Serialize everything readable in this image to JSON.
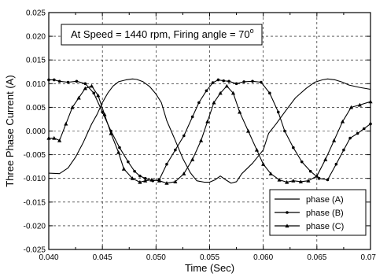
{
  "chart_data": {
    "type": "line",
    "title": "",
    "xlabel": "Time (Sec)",
    "ylabel": "Three Phase Current (A)",
    "xlim": [
      0.04,
      0.07
    ],
    "ylim": [
      -0.025,
      0.025
    ],
    "x_ticks": [
      "0.040",
      "0.045",
      "0.050",
      "0.055",
      "0.060",
      "0.065",
      "0.070"
    ],
    "y_ticks": [
      "0.025",
      "0.020",
      "0.015",
      "0.010",
      "0.005",
      "0.000",
      "-0.005",
      "-0.010",
      "-0.015",
      "-0.020",
      "-0.025"
    ],
    "grid": true,
    "legend_position": "bottom-right",
    "annotation": {
      "text": "At Speed = 1440 rpm, Firing angle = 70",
      "superscript": "o"
    },
    "series": [
      {
        "name": "phase (A)",
        "marker": "none",
        "x": [
          0.04,
          0.041,
          0.0418,
          0.0425,
          0.0432,
          0.0436,
          0.044,
          0.0445,
          0.045,
          0.0455,
          0.046,
          0.0465,
          0.0472,
          0.0478,
          0.0482,
          0.0488,
          0.0494,
          0.05,
          0.0505,
          0.051,
          0.0518,
          0.0525,
          0.0532,
          0.0538,
          0.0545,
          0.055,
          0.0555,
          0.056,
          0.0565,
          0.057,
          0.0575,
          0.058,
          0.059,
          0.06,
          0.0605,
          0.0612,
          0.062,
          0.063,
          0.064,
          0.0648,
          0.0655,
          0.066,
          0.0667,
          0.0674,
          0.068,
          0.069,
          0.07
        ],
        "y": [
          -0.0089,
          -0.009,
          -0.0078,
          -0.0055,
          -0.0025,
          -0.0005,
          0.0015,
          0.0035,
          0.006,
          0.008,
          0.0095,
          0.0104,
          0.0108,
          0.011,
          0.0109,
          0.0104,
          0.0094,
          0.0078,
          0.006,
          0.0022,
          -0.002,
          -0.0058,
          -0.0088,
          -0.0105,
          -0.0108,
          -0.0108,
          -0.0103,
          -0.0095,
          -0.0103,
          -0.011,
          -0.0107,
          -0.009,
          -0.0068,
          -0.004,
          -0.0005,
          0.0015,
          0.004,
          0.007,
          0.009,
          0.0103,
          0.0108,
          0.011,
          0.0108,
          0.0103,
          0.0097,
          0.0092,
          0.0088
        ]
      },
      {
        "name": "phase (B)",
        "marker": "dot",
        "x": [
          0.04,
          0.0405,
          0.041,
          0.0418,
          0.0426,
          0.0434,
          0.0442,
          0.045,
          0.0458,
          0.0466,
          0.0474,
          0.048,
          0.0485,
          0.049,
          0.0497,
          0.0503,
          0.051,
          0.0518,
          0.0526,
          0.0534,
          0.054,
          0.0547,
          0.0553,
          0.0558,
          0.0563,
          0.0568,
          0.0575,
          0.0582,
          0.059,
          0.0598,
          0.0606,
          0.0614,
          0.062,
          0.0628,
          0.0636,
          0.0644,
          0.0652,
          0.066,
          0.0668,
          0.0675,
          0.0681,
          0.0688,
          0.0694,
          0.07
        ],
        "y": [
          0.0108,
          0.0108,
          0.0105,
          0.0103,
          0.0105,
          0.01,
          0.008,
          0.004,
          0.0,
          -0.0035,
          -0.0065,
          -0.0085,
          -0.0095,
          -0.01,
          -0.0105,
          -0.0103,
          -0.007,
          -0.004,
          -0.001,
          0.003,
          0.006,
          0.0085,
          0.0102,
          0.0108,
          0.0106,
          0.0105,
          0.01,
          0.0104,
          0.0105,
          0.0103,
          0.008,
          0.004,
          0.0,
          -0.0035,
          -0.0065,
          -0.0085,
          -0.01,
          -0.0103,
          -0.007,
          -0.004,
          -0.0015,
          -0.0005,
          0.0005,
          0.0015
        ]
      },
      {
        "name": "phase (C)",
        "marker": "triangle",
        "x": [
          0.04,
          0.0405,
          0.041,
          0.0416,
          0.0422,
          0.0428,
          0.0434,
          0.044,
          0.0446,
          0.0452,
          0.0458,
          0.0465,
          0.047,
          0.0478,
          0.0485,
          0.049,
          0.0496,
          0.0503,
          0.051,
          0.0518,
          0.0526,
          0.0534,
          0.0542,
          0.0548,
          0.0554,
          0.056,
          0.0566,
          0.0572,
          0.0578,
          0.0586,
          0.0594,
          0.06,
          0.0607,
          0.0615,
          0.0622,
          0.0628,
          0.0635,
          0.0642,
          0.065,
          0.0658,
          0.0666,
          0.0674,
          0.0682,
          0.069,
          0.07
        ],
        "y": [
          -0.0015,
          -0.0015,
          -0.002,
          0.0015,
          0.005,
          0.007,
          0.009,
          0.0095,
          0.0075,
          0.0035,
          -0.0005,
          -0.0045,
          -0.008,
          -0.01,
          -0.0108,
          -0.0105,
          -0.0103,
          -0.0105,
          -0.011,
          -0.0107,
          -0.009,
          -0.006,
          -0.002,
          0.002,
          0.006,
          0.008,
          0.0095,
          0.008,
          0.004,
          0.0,
          -0.004,
          -0.007,
          -0.009,
          -0.0103,
          -0.0108,
          -0.0105,
          -0.0107,
          -0.0105,
          -0.0095,
          -0.006,
          -0.002,
          0.002,
          0.005,
          0.0055,
          0.0062
        ]
      }
    ]
  }
}
